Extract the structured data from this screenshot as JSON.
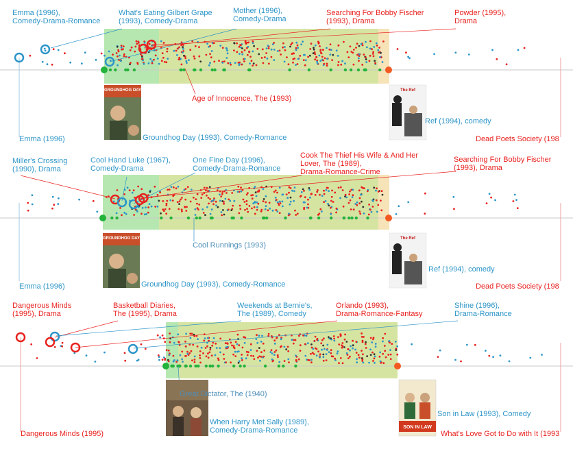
{
  "colors": {
    "red": "#e8221f",
    "blue": "#2d95c8",
    "green": "#22b33a",
    "orange": "#f25a22",
    "band_green": "#b7e7b0",
    "band_olive": "#d6e4a2",
    "band_tan": "#f7e3b8",
    "axis": "#bdbdbd"
  },
  "panels": [
    {
      "top_labels": [
        {
          "lines": [
            "Emma (1996),",
            "Comedy-Drama-Romance"
          ],
          "color": "blue"
        },
        {
          "lines": [
            "What's Eating Gilbert Grape",
            "(1993),  Comedy-Drama"
          ],
          "color": "blue"
        },
        {
          "lines": [
            "Mother (1996),",
            "Comedy-Drama"
          ],
          "color": "blue"
        },
        {
          "lines": [
            "Searching For Bobby Fischer",
            "(1993), Drama"
          ],
          "color": "red"
        },
        {
          "lines": [
            "Powder (1995),",
            "Drama"
          ],
          "color": "red"
        }
      ],
      "middle_label": {
        "text": "Age of Innocence, The (1993)",
        "color": "red"
      },
      "poster_left_caption": "Groundhog Day (1993), Comedy-Romance",
      "poster_right_caption": "Ref (1994), comedy",
      "left_axis_label": "Emma (1996)",
      "right_axis_label": "Dead Poets Society (198"
    },
    {
      "top_labels": [
        {
          "lines": [
            "Miller's Crossing",
            "(1990), Drama"
          ],
          "color": "blue"
        },
        {
          "lines": [
            "Cool Hand Luke (1967),",
            "Comedy-Drama"
          ],
          "color": "blue"
        },
        {
          "lines": [
            "One Fine Day (1996),",
            "Comedy-Drama-Romance"
          ],
          "color": "blue"
        },
        {
          "lines": [
            "Cook The Thief His Wife & And Her",
            "Lover, The (1989),",
            "Drama-Romance-Crime"
          ],
          "color": "red"
        },
        {
          "lines": [
            "Searching For Bobby Fischer",
            "(1993), Drama"
          ],
          "color": "red"
        }
      ],
      "middle_label": {
        "text": "Cool Runnings (1993)",
        "color": "blue"
      },
      "poster_left_caption": "Groundhog Day (1993), Comedy-Romance",
      "poster_right_caption": "Ref (1994), comedy",
      "left_axis_label": "Emma (1996)",
      "right_axis_label": "Dead Poets Society (198"
    },
    {
      "top_labels": [
        {
          "lines": [
            "Dangerous Minds",
            "(1995), Drama"
          ],
          "color": "red"
        },
        {
          "lines": [
            "Basketball Diaries,",
            "The (1995), Drama"
          ],
          "color": "red"
        },
        {
          "lines": [
            "Weekends at Bernie's,",
            "The (1989), Comedy"
          ],
          "color": "blue"
        },
        {
          "lines": [
            "Orlando (1993),",
            "Drama-Romance-Fantasy"
          ],
          "color": "red"
        },
        {
          "lines": [
            "Shine (1996),",
            "Drama-Romance"
          ],
          "color": "blue"
        }
      ],
      "middle_label": {
        "text": "Great Dictator, The (1940)",
        "color": "blue"
      },
      "poster_left_caption": "When Harry Met Sally (1989),",
      "poster_left_caption2": "Comedy-Drama-Romance",
      "poster_right_caption": "Son in Law (1993), Comedy",
      "left_axis_label": "Dangerous Minds (1995)",
      "right_axis_label": "What's Love Got to Do with It (1993"
    }
  ],
  "poster_texts": {
    "groundhog": "GROUNDHOG DAY",
    "ref": "The Ref",
    "son_in_law": "SON IN LAW"
  }
}
